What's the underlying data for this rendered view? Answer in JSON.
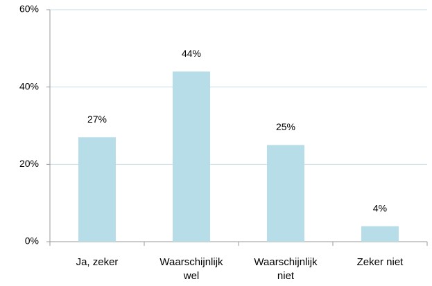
{
  "chart_data": {
    "type": "bar",
    "categories": [
      "Ja, zeker",
      "Waarschijnlijk\nwel",
      "Waarschijnlijk\nniet",
      "Zeker niet"
    ],
    "values": [
      27,
      44,
      25,
      4
    ],
    "value_labels": [
      "27%",
      "44%",
      "25%",
      "4%"
    ],
    "color": "#b7dde8",
    "ylim": [
      0,
      60
    ],
    "yticks": [
      {
        "value": 0,
        "label": "0%"
      },
      {
        "value": 20,
        "label": "20%"
      },
      {
        "value": 40,
        "label": "40%"
      },
      {
        "value": 60,
        "label": "60%"
      }
    ],
    "grid": true
  }
}
